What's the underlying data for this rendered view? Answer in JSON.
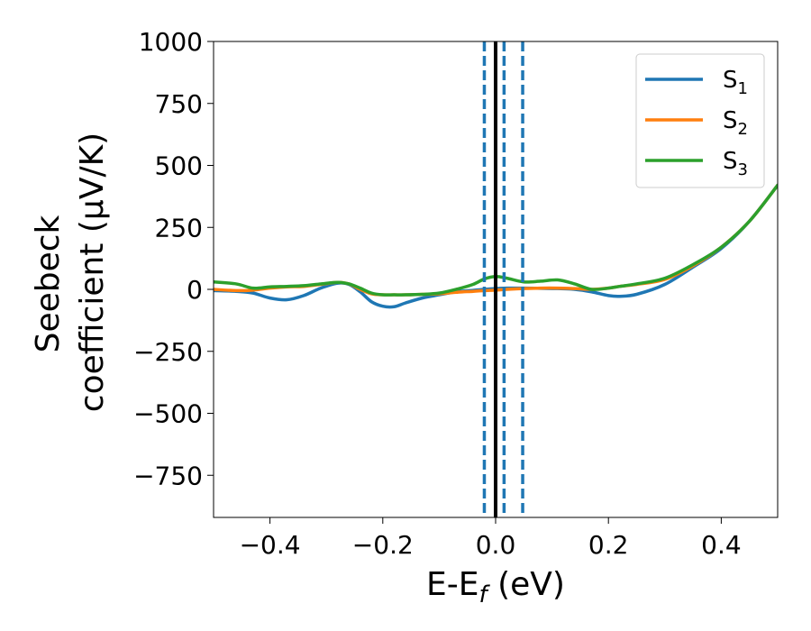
{
  "chart_data": {
    "type": "line",
    "xlabel": "E-E",
    "xlabel_sub": "f",
    "xlabel_unit": " (eV)",
    "ylabel_line1": "Seebeck",
    "ylabel_line2": "coefficient  (μV/K)",
    "xlim": [
      -0.5,
      0.5
    ],
    "ylim": [
      -920,
      1000
    ],
    "xticks": [
      -0.4,
      -0.2,
      0.0,
      0.2,
      0.4
    ],
    "xtick_labels": [
      "−0.4",
      "−0.2",
      "0.0",
      "0.2",
      "0.4"
    ],
    "yticks": [
      -750,
      -500,
      -250,
      0,
      250,
      500,
      750,
      1000
    ],
    "ytick_labels": [
      "−750",
      "−500",
      "−250",
      "0",
      "250",
      "500",
      "750",
      "1000"
    ],
    "grid": false,
    "legend_position": "top-right",
    "colors": {
      "S1": "#1f77b4",
      "S2": "#ff7f0e",
      "S3": "#2ca02c",
      "fermi": "#000000",
      "dashed": "#1f77b4"
    },
    "vlines": {
      "solid": [
        0.0
      ],
      "dashed": [
        -0.02,
        0.015,
        0.048
      ]
    },
    "series": [
      {
        "name": "S",
        "sub": "1",
        "color": "#1f77b4",
        "x": [
          -0.5,
          -0.46,
          -0.43,
          -0.4,
          -0.37,
          -0.34,
          -0.31,
          -0.28,
          -0.26,
          -0.24,
          -0.22,
          -0.2,
          -0.18,
          -0.16,
          -0.13,
          -0.1,
          -0.07,
          -0.04,
          -0.02,
          0.0,
          0.02,
          0.05,
          0.08,
          0.11,
          0.14,
          0.17,
          0.2,
          0.22,
          0.25,
          0.3,
          0.35,
          0.4,
          0.45,
          0.5
        ],
        "y": [
          -5,
          -8,
          -15,
          -35,
          -42,
          -25,
          5,
          25,
          20,
          -10,
          -50,
          -68,
          -70,
          -55,
          -35,
          -22,
          -10,
          -4,
          0,
          3,
          5,
          5,
          4,
          3,
          0,
          -10,
          -25,
          -28,
          -20,
          20,
          90,
          165,
          275,
          420
        ]
      },
      {
        "name": "S",
        "sub": "2",
        "color": "#ff7f0e",
        "x": [
          -0.5,
          -0.46,
          -0.43,
          -0.4,
          -0.37,
          -0.34,
          -0.31,
          -0.28,
          -0.26,
          -0.24,
          -0.22,
          -0.2,
          -0.18,
          -0.16,
          -0.13,
          -0.1,
          -0.07,
          -0.04,
          -0.02,
          0.0,
          0.02,
          0.05,
          0.08,
          0.11,
          0.14,
          0.17,
          0.2,
          0.22,
          0.25,
          0.3,
          0.35,
          0.4,
          0.45,
          0.5
        ],
        "y": [
          0,
          -5,
          -3,
          5,
          10,
          12,
          20,
          28,
          22,
          0,
          -18,
          -22,
          -22,
          -22,
          -20,
          -18,
          -12,
          -8,
          -5,
          -3,
          0,
          3,
          5,
          5,
          3,
          0,
          5,
          12,
          20,
          40,
          95,
          170,
          275,
          420
        ]
      },
      {
        "name": "S",
        "sub": "3",
        "color": "#2ca02c",
        "x": [
          -0.5,
          -0.46,
          -0.43,
          -0.4,
          -0.37,
          -0.34,
          -0.31,
          -0.28,
          -0.26,
          -0.24,
          -0.22,
          -0.2,
          -0.18,
          -0.16,
          -0.13,
          -0.1,
          -0.07,
          -0.04,
          -0.02,
          0.0,
          0.02,
          0.05,
          0.08,
          0.11,
          0.14,
          0.17,
          0.2,
          0.22,
          0.25,
          0.3,
          0.35,
          0.4,
          0.45,
          0.5
        ],
        "y": [
          30,
          22,
          5,
          10,
          12,
          15,
          22,
          28,
          22,
          5,
          -15,
          -22,
          -22,
          -22,
          -20,
          -15,
          0,
          20,
          42,
          52,
          45,
          30,
          33,
          38,
          22,
          0,
          5,
          12,
          22,
          45,
          100,
          170,
          275,
          420
        ]
      }
    ]
  }
}
